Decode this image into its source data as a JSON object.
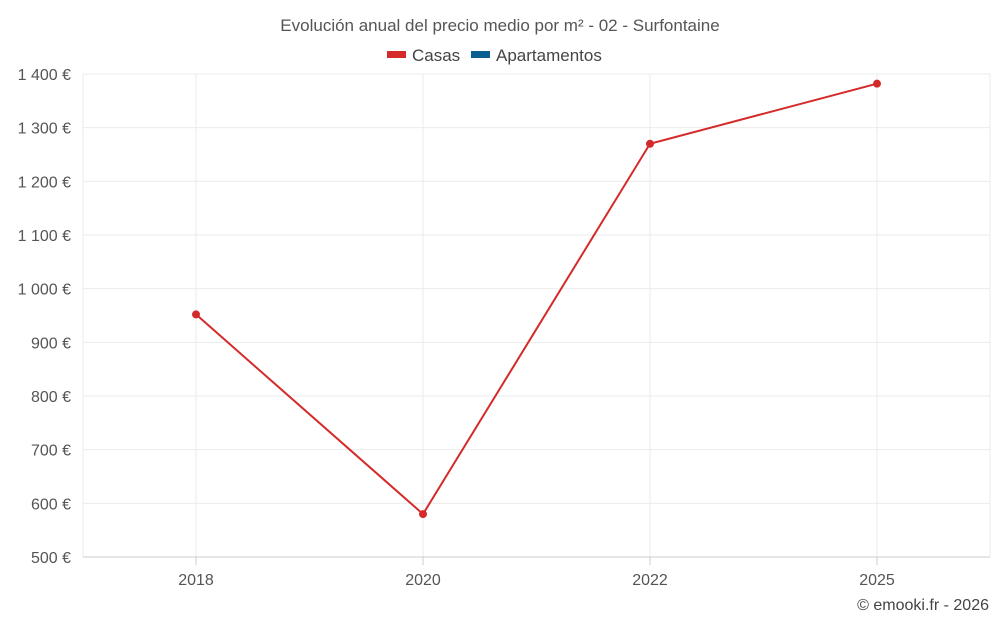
{
  "chart_data": {
    "type": "line",
    "title": "Evolución anual del precio medio por m² - 02 - Surfontaine",
    "categories": [
      "2018",
      "2020",
      "2022",
      "2025"
    ],
    "series": [
      {
        "name": "Casas",
        "color": "#d42a2a",
        "values": [
          952,
          580,
          1270,
          1382
        ]
      },
      {
        "name": "Apartamentos",
        "color": "#0a5d91",
        "values": [
          null,
          null,
          null,
          null
        ]
      }
    ],
    "ylim": [
      500,
      1400
    ],
    "yticks": [
      500,
      600,
      700,
      800,
      900,
      1000,
      1100,
      1200,
      1300,
      1400
    ],
    "ytick_labels": [
      "500 €",
      "600 €",
      "700 €",
      "800 €",
      "900 €",
      "1 000 €",
      "1 100 €",
      "1 200 €",
      "1 300 €",
      "1 400 €"
    ],
    "grid": true,
    "legend": "top-center"
  },
  "credit": "© emooki.fr - 2026"
}
